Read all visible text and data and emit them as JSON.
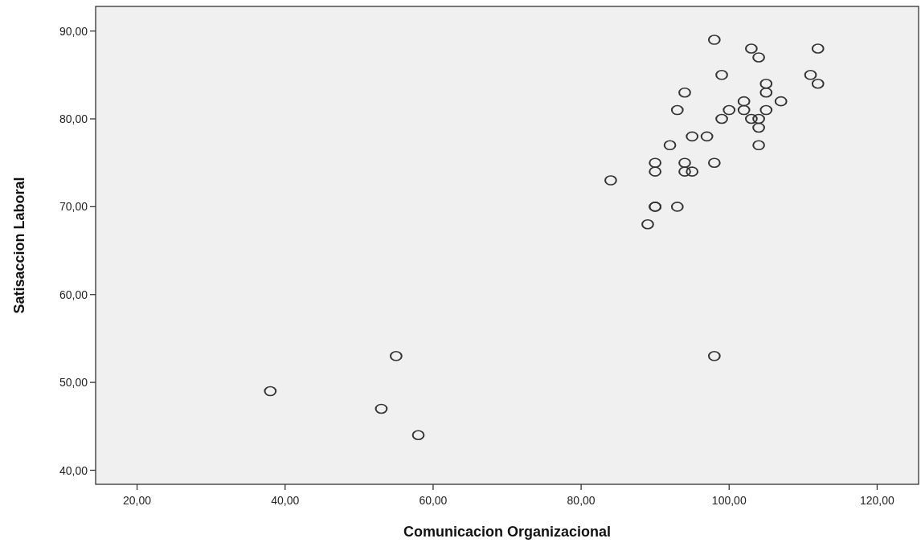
{
  "chart_data": {
    "type": "scatter",
    "xlabel": "Comunicacion Organizacional",
    "ylabel": "Satisaccion Laboral",
    "xlim": [
      14.4,
      125.6
    ],
    "ylim": [
      38.4,
      92.8
    ],
    "xticks": [
      {
        "value": 20,
        "label": "20,00"
      },
      {
        "value": 40,
        "label": "40,00"
      },
      {
        "value": 60,
        "label": "60,00"
      },
      {
        "value": 80,
        "label": "80,00"
      },
      {
        "value": 100,
        "label": "100,00"
      },
      {
        "value": 120,
        "label": "120,00"
      }
    ],
    "yticks": [
      {
        "value": 40,
        "label": "40,00"
      },
      {
        "value": 50,
        "label": "50,00"
      },
      {
        "value": 60,
        "label": "60,00"
      },
      {
        "value": 70,
        "label": "70,00"
      },
      {
        "value": 80,
        "label": "80,00"
      },
      {
        "value": 90,
        "label": "90,00"
      }
    ],
    "grid": false,
    "marker": "circle",
    "series": [
      {
        "color": "#333333",
        "x": [
          98,
          103,
          104,
          112,
          99,
          111,
          105,
          112,
          94,
          105,
          102,
          107,
          93,
          100,
          102,
          105,
          99,
          103,
          104,
          104,
          95,
          97,
          92,
          104,
          90,
          94,
          98,
          90,
          94,
          95,
          84,
          90,
          90,
          93,
          89,
          55,
          98,
          38,
          53,
          58
        ],
        "values": [
          89,
          88,
          87,
          88,
          85,
          85,
          84,
          84,
          83,
          83,
          82,
          82,
          81,
          81,
          81,
          81,
          80,
          80,
          80,
          79,
          78,
          78,
          77,
          77,
          75,
          75,
          75,
          74,
          74,
          74,
          73,
          70,
          70,
          70,
          68,
          53,
          53,
          49,
          47,
          44
        ]
      }
    ]
  }
}
